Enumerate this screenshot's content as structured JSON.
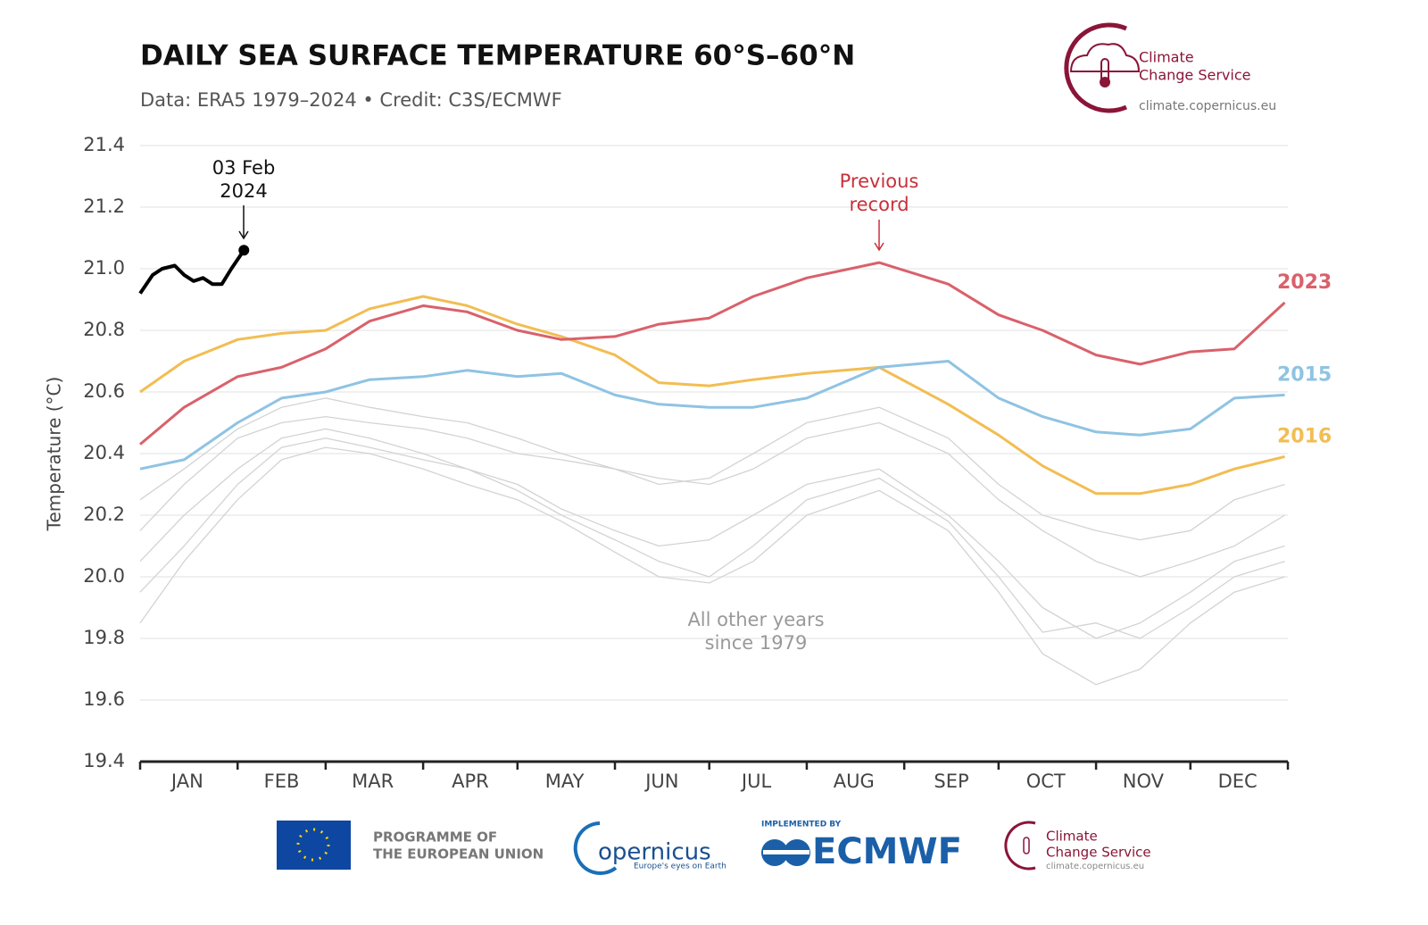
{
  "chart_data": {
    "type": "line",
    "title": "DAILY SEA SURFACE TEMPERATURE 60°S–60°N",
    "subtitle": "Data: ERA5 1979–2024 • Credit: C3S/ECMWF",
    "y_label": "Temperature (°C)",
    "x": [
      1,
      15,
      32,
      46,
      60,
      74,
      91,
      105,
      121,
      135,
      152,
      166,
      182,
      196,
      213,
      236,
      258,
      274,
      288,
      305,
      319,
      335,
      349,
      365
    ],
    "xlim": [
      1,
      366
    ],
    "xticks": [
      {
        "value": 16,
        "label": "JAN"
      },
      {
        "value": 46,
        "label": "FEB"
      },
      {
        "value": 75,
        "label": "MAR"
      },
      {
        "value": 106,
        "label": "APR"
      },
      {
        "value": 136,
        "label": "MAY"
      },
      {
        "value": 167,
        "label": "JUN"
      },
      {
        "value": 197,
        "label": "JUL"
      },
      {
        "value": 228,
        "label": "AUG"
      },
      {
        "value": 259,
        "label": "SEP"
      },
      {
        "value": 289,
        "label": "OCT"
      },
      {
        "value": 320,
        "label": "NOV"
      },
      {
        "value": 350,
        "label": "DEC"
      }
    ],
    "month_starts": [
      1,
      32,
      60,
      91,
      121,
      152,
      182,
      213,
      244,
      274,
      305,
      335,
      366
    ],
    "ylim": [
      19.4,
      21.4
    ],
    "yticks": [
      19.4,
      19.6,
      19.8,
      {
        "value": 20,
        "label": "20.0"
      },
      20.2,
      20.4,
      20.6,
      20.8,
      {
        "value": 21,
        "label": "21.0"
      },
      21.2,
      21.4
    ],
    "grid": true,
    "series": [
      {
        "color": "#d3d3d3",
        "values": [
          20.15,
          20.3,
          20.45,
          20.5,
          20.52,
          20.5,
          20.48,
          20.45,
          20.4,
          20.38,
          20.35,
          20.32,
          20.3,
          20.35,
          20.45,
          20.5,
          20.4,
          20.25,
          20.15,
          20.05,
          20.0,
          20.05,
          20.1,
          20.2
        ]
      },
      {
        "color": "#d3d3d3",
        "values": [
          20.05,
          20.2,
          20.35,
          20.45,
          20.48,
          20.45,
          20.4,
          20.35,
          20.3,
          20.22,
          20.15,
          20.1,
          20.12,
          20.2,
          20.3,
          20.35,
          20.2,
          20.05,
          19.9,
          19.8,
          19.85,
          19.95,
          20.05,
          20.1
        ]
      },
      {
        "color": "#d3d3d3",
        "values": [
          19.85,
          20.05,
          20.25,
          20.38,
          20.42,
          20.4,
          20.35,
          20.3,
          20.25,
          20.18,
          20.08,
          20.0,
          19.98,
          20.05,
          20.2,
          20.28,
          20.15,
          19.95,
          19.75,
          19.65,
          19.7,
          19.85,
          19.95,
          20.0
        ]
      },
      {
        "color": "#d3d3d3",
        "values": [
          20.25,
          20.35,
          20.48,
          20.55,
          20.58,
          20.55,
          20.52,
          20.5,
          20.45,
          20.4,
          20.35,
          20.3,
          20.32,
          20.4,
          20.5,
          20.55,
          20.45,
          20.3,
          20.2,
          20.15,
          20.12,
          20.15,
          20.25,
          20.3
        ]
      },
      {
        "color": "#d3d3d3",
        "values": [
          19.95,
          20.1,
          20.3,
          20.42,
          20.45,
          20.42,
          20.38,
          20.35,
          20.28,
          20.2,
          20.12,
          20.05,
          20.0,
          20.1,
          20.25,
          20.32,
          20.18,
          20.0,
          19.82,
          19.85,
          19.8,
          19.9,
          20.0,
          20.05
        ]
      },
      {
        "name": "2016",
        "color": "#f2bd52",
        "values": [
          20.6,
          20.7,
          20.77,
          20.79,
          20.8,
          20.87,
          20.91,
          20.88,
          20.82,
          20.78,
          20.72,
          20.63,
          20.62,
          20.64,
          20.66,
          20.68,
          20.56,
          20.46,
          20.36,
          20.27,
          20.27,
          20.3,
          20.35,
          20.39
        ]
      },
      {
        "name": "2015",
        "color": "#8fc3e3",
        "values": [
          20.35,
          20.38,
          20.5,
          20.58,
          20.6,
          20.64,
          20.65,
          20.67,
          20.65,
          20.66,
          20.59,
          20.56,
          20.55,
          20.55,
          20.58,
          20.68,
          20.7,
          20.58,
          20.52,
          20.47,
          20.46,
          20.48,
          20.58,
          20.59
        ]
      },
      {
        "name": "2023",
        "color": "#d9616b",
        "values": [
          20.43,
          20.55,
          20.65,
          20.68,
          20.74,
          20.83,
          20.88,
          20.86,
          20.8,
          20.77,
          20.78,
          20.82,
          20.84,
          20.91,
          20.97,
          21.02,
          20.95,
          20.85,
          20.8,
          20.72,
          20.69,
          20.73,
          20.74,
          20.89
        ]
      },
      {
        "color": "#000000",
        "x": [
          1,
          5,
          8,
          12,
          15,
          18,
          21,
          24,
          27,
          30,
          34
        ],
        "values": [
          20.92,
          20.98,
          21.0,
          21.01,
          20.98,
          20.96,
          20.97,
          20.95,
          20.95,
          21.0,
          21.06
        ]
      }
    ],
    "annotations": {
      "latest": [
        "03 Feb",
        "2024"
      ],
      "previous_record": [
        "Previous",
        "record"
      ],
      "other_years": [
        "All other years",
        "since 1979"
      ]
    }
  },
  "branding": {
    "logo_top": [
      "Climate",
      "Change Service"
    ],
    "logo_url": "climate.copernicus.eu",
    "eu": [
      "PROGRAMME OF",
      "THE EUROPEAN UNION"
    ],
    "copernicus": "opernicus",
    "copernicus_tagline": "Europe's eyes on Earth",
    "ecmwf_small": "IMPLEMENTED BY",
    "ecmwf": "ECMWF",
    "c3s": [
      "Climate",
      "Change Service"
    ],
    "c3s_url": "climate.copernicus.eu"
  }
}
